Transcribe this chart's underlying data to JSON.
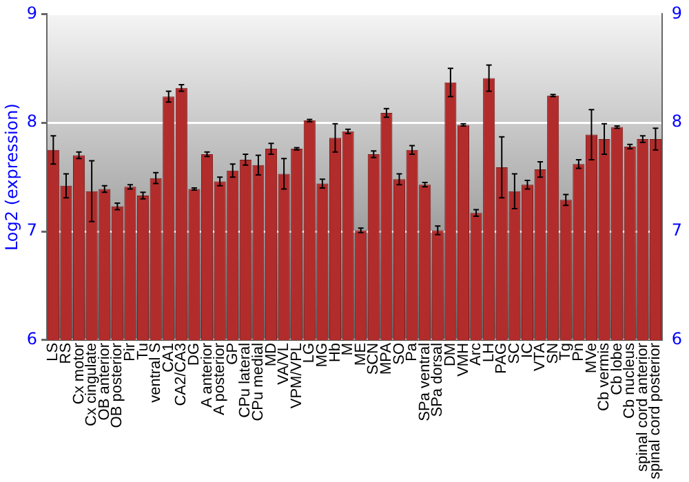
{
  "chart_data": {
    "type": "bar",
    "ylabel": "Log2 (expression)",
    "categories": [
      "LS",
      "RS",
      "Cx motor",
      "Cx cingulate",
      "OB anterior",
      "OB posterior",
      "Pir",
      "Tu",
      "ventral S",
      "CA1",
      "CA2/CA3",
      "DG",
      "A anterior",
      "A posterior",
      "GP",
      "CPu lateral",
      "CPu medial",
      "MD",
      "VA/VL",
      "VPM/VPL",
      "LG",
      "MG",
      "Hb",
      "M",
      "ME",
      "SCN",
      "MPA",
      "SO",
      "Pa",
      "SPa ventral",
      "SPa dorsal",
      "DM",
      "VMH",
      "Arc",
      "LH",
      "PAG",
      "SC",
      "IC",
      "VTA",
      "SN",
      "Tg",
      "Pn",
      "MVe",
      "Cb vermis",
      "Cb lobe",
      "Cb nucleus",
      "spinal cord anterior",
      "spinal cord posterior"
    ],
    "values": [
      7.75,
      7.42,
      7.7,
      7.37,
      7.39,
      7.23,
      7.41,
      7.33,
      7.49,
      8.24,
      8.32,
      7.39,
      7.71,
      7.46,
      7.56,
      7.66,
      7.61,
      7.76,
      7.53,
      7.76,
      8.02,
      7.44,
      7.86,
      7.92,
      7.01,
      7.71,
      8.09,
      7.48,
      7.75,
      7.43,
      7.01,
      8.37,
      7.98,
      7.17,
      8.41,
      7.59,
      7.37,
      7.43,
      7.57,
      8.25,
      7.29,
      7.62,
      7.89,
      7.85,
      7.96,
      7.78,
      7.85,
      7.85
    ],
    "errors": [
      0.13,
      0.11,
      0.03,
      0.28,
      0.03,
      0.03,
      0.02,
      0.03,
      0.05,
      0.05,
      0.03,
      0.01,
      0.02,
      0.04,
      0.06,
      0.05,
      0.09,
      0.05,
      0.14,
      0.01,
      0.01,
      0.04,
      0.13,
      0.02,
      0.02,
      0.03,
      0.04,
      0.05,
      0.04,
      0.02,
      0.04,
      0.13,
      0.01,
      0.03,
      0.12,
      0.28,
      0.16,
      0.04,
      0.07,
      0.01,
      0.05,
      0.04,
      0.23,
      0.14,
      0.01,
      0.02,
      0.03,
      0.1
    ],
    "color": "#b22c2c",
    "ylim": [
      6,
      9
    ],
    "yticks": [
      6,
      7,
      8,
      9
    ],
    "y2lim": [
      6,
      9
    ],
    "y2ticks": [
      6,
      7,
      8,
      9
    ],
    "grid": "y"
  }
}
